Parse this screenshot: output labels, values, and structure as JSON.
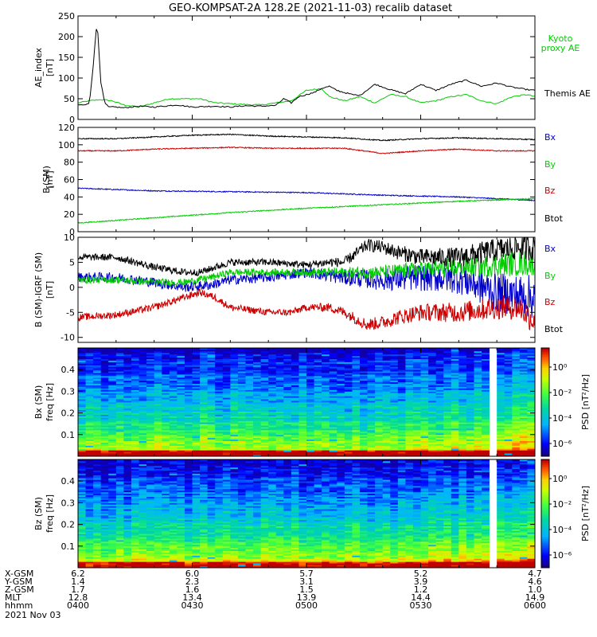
{
  "figure": {
    "title": "GEO-KOMPSAT-2A 128.2E (2021-11-03) recalib dataset"
  },
  "chart_data": [
    {
      "type": "line",
      "panel": "ae_index",
      "ylabel_line1": "AE_index",
      "ylabel_line2": "[nT]",
      "ylim": [
        0,
        250
      ],
      "yticks": [
        0,
        50,
        100,
        150,
        200,
        250
      ],
      "xlim": [
        240,
        360
      ],
      "series": [
        {
          "name": "Kyoto proxy AE",
          "name_lines": [
            "Kyoto",
            "proxy AE"
          ],
          "color": "#00cc00",
          "x": [
            240,
            243,
            246,
            249,
            252,
            256,
            260,
            264,
            268,
            272,
            276,
            280,
            284,
            288,
            292,
            296,
            300,
            304,
            306,
            310,
            314,
            318,
            322,
            326,
            330,
            334,
            338,
            342,
            346,
            350,
            354,
            358,
            360
          ],
          "y": [
            40,
            45,
            48,
            45,
            35,
            30,
            40,
            50,
            50,
            50,
            40,
            38,
            36,
            35,
            40,
            45,
            70,
            75,
            55,
            45,
            55,
            40,
            60,
            55,
            40,
            45,
            55,
            60,
            45,
            38,
            55,
            60,
            55
          ]
        },
        {
          "name": "Themis AE",
          "name_lines": [
            "Themis AE"
          ],
          "color": "#000000",
          "x": [
            240,
            242,
            243,
            244,
            245,
            246,
            247,
            248,
            250,
            252,
            256,
            260,
            266,
            270,
            276,
            280,
            284,
            288,
            292,
            294,
            296,
            298,
            300,
            302,
            304,
            306,
            308,
            310,
            312,
            314,
            318,
            322,
            326,
            330,
            334,
            338,
            342,
            346,
            350,
            354,
            358,
            360
          ],
          "y": [
            35,
            35,
            40,
            130,
            240,
            90,
            40,
            30,
            30,
            28,
            32,
            30,
            35,
            30,
            32,
            30,
            33,
            32,
            34,
            50,
            40,
            55,
            60,
            65,
            75,
            80,
            70,
            65,
            60,
            58,
            85,
            72,
            62,
            85,
            70,
            85,
            95,
            80,
            88,
            78,
            72,
            70
          ]
        }
      ]
    },
    {
      "type": "line",
      "panel": "b_sm",
      "ylabel_line1": "B",
      "ylabel_sub": "i",
      "ylabel_line1b": "(SM)",
      "ylabel_line2": "[nT]",
      "ylim": [
        0,
        120
      ],
      "yticks": [
        0,
        20,
        40,
        60,
        80,
        100,
        120
      ],
      "xlim": [
        240,
        360
      ],
      "series": [
        {
          "name": "Bx",
          "color": "#0000cc",
          "x": [
            240,
            260,
            280,
            300,
            320,
            340,
            360
          ],
          "y": [
            50,
            47,
            46,
            45,
            42,
            40,
            36
          ]
        },
        {
          "name": "By",
          "color": "#00cc00",
          "x": [
            240,
            260,
            280,
            300,
            320,
            340,
            360
          ],
          "y": [
            10,
            16,
            22,
            27,
            31,
            35,
            38
          ]
        },
        {
          "name": "Bz",
          "color": "#cc0000",
          "x": [
            240,
            250,
            260,
            270,
            280,
            290,
            300,
            310,
            320,
            330,
            340,
            350,
            360
          ],
          "y": [
            93,
            93,
            95,
            96,
            97,
            96,
            96,
            96,
            90,
            93,
            95,
            93,
            93
          ]
        },
        {
          "name": "Btot",
          "color": "#000000",
          "x": [
            240,
            250,
            260,
            270,
            280,
            290,
            300,
            310,
            320,
            330,
            340,
            350,
            360
          ],
          "y": [
            107,
            107,
            109,
            111,
            112,
            110,
            109,
            108,
            105,
            107,
            108,
            107,
            106
          ]
        }
      ]
    },
    {
      "type": "line",
      "panel": "b_sm_minus_igrf",
      "ylabel_line1": "B (SM)-IGRF (SM)",
      "ylabel_sub": "i",
      "ylabel_line2": "[nT]",
      "ylim": [
        -11,
        10
      ],
      "yticks": [
        -10,
        -5,
        0,
        5,
        10
      ],
      "xlim": [
        240,
        360
      ],
      "series": [
        {
          "name": "Bx",
          "color": "#0000cc",
          "x": [
            240,
            250,
            260,
            268,
            275,
            280,
            290,
            300,
            310,
            320,
            330,
            340,
            350,
            360
          ],
          "y": [
            2,
            2,
            1,
            0,
            0.5,
            1.5,
            2,
            3,
            2,
            1.5,
            2,
            2,
            -1,
            -2
          ]
        },
        {
          "name": "By",
          "color": "#00cc00",
          "x": [
            240,
            250,
            260,
            268,
            275,
            280,
            290,
            300,
            310,
            320,
            330,
            340,
            350,
            360
          ],
          "y": [
            1.5,
            1.5,
            1,
            1,
            2,
            3,
            3,
            3,
            3,
            3,
            3.5,
            4,
            4.5,
            5
          ]
        },
        {
          "name": "Bz",
          "color": "#cc0000",
          "x": [
            240,
            250,
            260,
            268,
            272,
            276,
            280,
            290,
            296,
            300,
            306,
            310,
            316,
            320,
            324,
            330,
            340,
            350,
            356,
            360
          ],
          "y": [
            -6,
            -5.5,
            -4,
            -2,
            -1,
            -2,
            -4,
            -5,
            -5,
            -4,
            -4,
            -5,
            -7.5,
            -7,
            -6,
            -5,
            -5,
            -4,
            -4,
            -7
          ]
        },
        {
          "name": "Btot",
          "color": "#000000",
          "x": [
            240,
            250,
            260,
            268,
            272,
            276,
            280,
            290,
            300,
            306,
            310,
            316,
            320,
            324,
            330,
            340,
            350,
            356,
            360
          ],
          "y": [
            6,
            6,
            4,
            3,
            3,
            4,
            5,
            5,
            4.5,
            5,
            5,
            8.5,
            8,
            7,
            6,
            6,
            7.5,
            8,
            8
          ]
        }
      ]
    },
    {
      "type": "heatmap",
      "panel": "bx_psd",
      "ylabel_line1": "Bx (SM)",
      "ylabel_line2": "freq [Hz]",
      "ylim": [
        0,
        0.5
      ],
      "yticks": [
        0.1,
        0.2,
        0.3,
        0.4
      ],
      "xlim": [
        240,
        360
      ],
      "data_gap": [
        347,
        351
      ],
      "colorbar_label": "PSD [nT²/Hz]",
      "colorbar_ticks": [
        "10⁰",
        "10⁻²",
        "10⁻⁴",
        "10⁻⁶"
      ],
      "colorbar_tick_values": [
        0,
        -2,
        -4,
        -6
      ],
      "colorbar_range": [
        -7,
        1.5
      ]
    },
    {
      "type": "heatmap",
      "panel": "bz_psd",
      "ylabel_line1": "Bz (SM)",
      "ylabel_line2": "freq [Hz]",
      "ylim": [
        0,
        0.5
      ],
      "yticks": [
        0.1,
        0.2,
        0.3,
        0.4
      ],
      "xlim": [
        240,
        360
      ],
      "data_gap": [
        347,
        351
      ],
      "colorbar_label": "PSD [nT²/Hz]",
      "colorbar_ticks": [
        "10⁰",
        "10⁻²",
        "10⁻⁴",
        "10⁻⁶"
      ],
      "colorbar_tick_values": [
        0,
        -2,
        -4,
        -6
      ],
      "colorbar_range": [
        -7,
        1.5
      ]
    }
  ],
  "ephemeris": {
    "row_labels": [
      "X-GSM",
      "Y-GSM",
      "Z-GSM",
      "MLT",
      "hhmm"
    ],
    "columns": [
      {
        "t": 240,
        "values": [
          "6.2",
          "1.4",
          "1.7",
          "12.8",
          "0400"
        ]
      },
      {
        "t": 270,
        "values": [
          "6.0",
          "2.3",
          "1.6",
          "13.4",
          "0430"
        ]
      },
      {
        "t": 300,
        "values": [
          "5.7",
          "3.1",
          "1.5",
          "13.9",
          "0500"
        ]
      },
      {
        "t": 330,
        "values": [
          "5.2",
          "3.9",
          "1.2",
          "14.4",
          "0530"
        ]
      },
      {
        "t": 360,
        "values": [
          "4.7",
          "4.6",
          "1.0",
          "14.9",
          "0600"
        ]
      }
    ],
    "date": "2021 Nov 03"
  }
}
